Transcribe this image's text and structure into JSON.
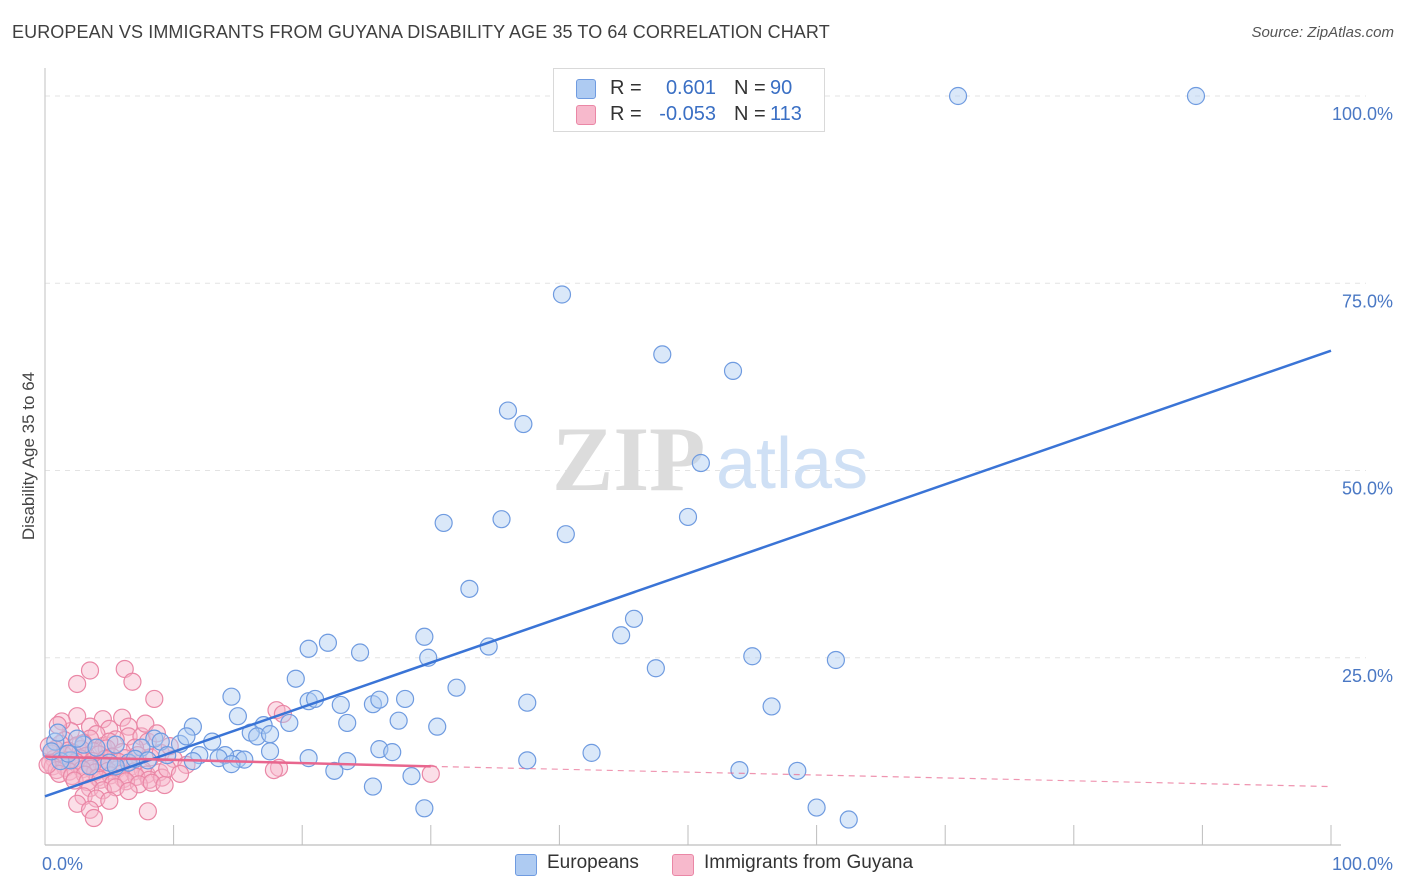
{
  "header": {
    "title": "EUROPEAN VS IMMIGRANTS FROM GUYANA DISABILITY AGE 35 TO 64 CORRELATION CHART",
    "source": "Source: ZipAtlas.com"
  },
  "watermark": {
    "zip": "ZIP",
    "atlas": "atlas"
  },
  "legend": {
    "rows": [
      {
        "r_label": "R =",
        "r_value": "0.601",
        "n_label": "N =",
        "n_value": "90",
        "color": "#aecbf2",
        "border": "#6f9be0"
      },
      {
        "r_label": "R =",
        "r_value": "-0.053",
        "n_label": "N =",
        "n_value": "113",
        "color": "#f7b9cc",
        "border": "#ea87a6"
      }
    ]
  },
  "bottom_legend": [
    {
      "label": "Europeans",
      "color": "#aecbf2",
      "border": "#6f9be0"
    },
    {
      "label": "Immigrants from Guyana",
      "color": "#f7b9cc",
      "border": "#ea87a6"
    }
  ],
  "chart_data": {
    "type": "scatter",
    "title": "EUROPEAN VS IMMIGRANTS FROM GUYANA DISABILITY AGE 35 TO 64 CORRELATION CHART",
    "xlabel": "",
    "ylabel": "Disability Age 35 to 64",
    "xlim": [
      0,
      100
    ],
    "ylim": [
      0,
      100
    ],
    "x_tick_labels": [
      {
        "value": 0,
        "label": "0.0%"
      },
      {
        "value": 100,
        "label": "100.0%"
      }
    ],
    "y_tick_labels": [
      {
        "value": 100,
        "label": "100.0%"
      },
      {
        "value": 75,
        "label": "75.0%"
      },
      {
        "value": 50,
        "label": "50.0%"
      },
      {
        "value": 25,
        "label": "25.0%"
      }
    ],
    "colors": {
      "blue": "#3a74d6",
      "pink": "#e8668e",
      "grid": "#e3e3e3"
    },
    "series": [
      {
        "name": "Europeans",
        "color": "#6f9be0",
        "fill": "#aecbf2",
        "trend": {
          "x": [
            0,
            100
          ],
          "y": [
            6.5,
            66.0
          ],
          "style": "solid"
        },
        "points": [
          [
            71,
            100
          ],
          [
            89.5,
            100
          ],
          [
            40.2,
            73.5
          ],
          [
            48,
            65.5
          ],
          [
            53.5,
            63.3
          ],
          [
            36,
            58
          ],
          [
            37.2,
            56.2
          ],
          [
            51,
            51
          ],
          [
            31,
            43
          ],
          [
            35.5,
            43.5
          ],
          [
            40.5,
            41.5
          ],
          [
            50,
            43.8
          ],
          [
            33,
            34.2
          ],
          [
            45.8,
            30.2
          ],
          [
            44.8,
            28
          ],
          [
            29.5,
            27.8
          ],
          [
            22,
            27
          ],
          [
            20.5,
            26.2
          ],
          [
            34.5,
            26.5
          ],
          [
            24.5,
            25.7
          ],
          [
            29.8,
            25
          ],
          [
            47.5,
            23.6
          ],
          [
            55,
            25.2
          ],
          [
            61.5,
            24.7
          ],
          [
            19.5,
            22.2
          ],
          [
            32,
            21
          ],
          [
            14.5,
            19.8
          ],
          [
            20.5,
            19.2
          ],
          [
            21,
            19.5
          ],
          [
            23,
            18.7
          ],
          [
            25.5,
            18.8
          ],
          [
            26,
            19.4
          ],
          [
            28,
            19.5
          ],
          [
            37.5,
            19
          ],
          [
            56.5,
            18.5
          ],
          [
            15,
            17.2
          ],
          [
            17,
            16
          ],
          [
            19,
            16.3
          ],
          [
            23.5,
            16.3
          ],
          [
            27.5,
            16.6
          ],
          [
            30.5,
            15.8
          ],
          [
            11.5,
            15.8
          ],
          [
            16,
            15
          ],
          [
            16.5,
            14.5
          ],
          [
            17.5,
            14.8
          ],
          [
            8.5,
            14.2
          ],
          [
            9,
            13.8
          ],
          [
            10.5,
            13.5
          ],
          [
            11,
            14.5
          ],
          [
            13,
            13.8
          ],
          [
            3,
            13.4
          ],
          [
            4,
            13
          ],
          [
            5.5,
            13.4
          ],
          [
            7.5,
            13
          ],
          [
            17.5,
            12.5
          ],
          [
            26,
            12.8
          ],
          [
            27,
            12.4
          ],
          [
            12,
            12
          ],
          [
            15,
            11.5
          ],
          [
            14,
            12
          ],
          [
            6.5,
            11
          ],
          [
            7,
            11.5
          ],
          [
            8,
            11.3
          ],
          [
            9.5,
            12
          ],
          [
            11.5,
            11.2
          ],
          [
            13.5,
            11.6
          ],
          [
            15.5,
            11.4
          ],
          [
            20.5,
            11.6
          ],
          [
            23.5,
            11.2
          ],
          [
            37.5,
            11.3
          ],
          [
            42.5,
            12.3
          ],
          [
            2,
            11.3
          ],
          [
            3.5,
            10.5
          ],
          [
            5,
            11
          ],
          [
            5.5,
            10.5
          ],
          [
            14.5,
            10.8
          ],
          [
            1.2,
            11.2
          ],
          [
            1.8,
            12.2
          ],
          [
            0.8,
            13.8
          ],
          [
            1,
            15
          ],
          [
            2.5,
            14.2
          ],
          [
            22.5,
            9.9
          ],
          [
            28.5,
            9.2
          ],
          [
            54,
            10
          ],
          [
            58.5,
            9.9
          ],
          [
            25.5,
            7.8
          ],
          [
            29.5,
            4.9
          ],
          [
            60,
            5
          ],
          [
            62.5,
            3.4
          ],
          [
            0.5,
            12.5
          ]
        ]
      },
      {
        "name": "Immigrants from Guyana",
        "color": "#ea87a6",
        "fill": "#f7b9cc",
        "trend": {
          "x": [
            0,
            30
          ],
          "y": [
            11.8,
            10.5
          ],
          "style": "solid",
          "dashed_extension": {
            "x": [
              30,
              100
            ],
            "y": [
              10.5,
              7.8
            ]
          }
        },
        "points": [
          [
            3.5,
            23.3
          ],
          [
            6.2,
            23.5
          ],
          [
            2.5,
            21.5
          ],
          [
            8.5,
            19.5
          ],
          [
            6,
            17
          ],
          [
            4.5,
            16.8
          ],
          [
            2.5,
            17.2
          ],
          [
            3.5,
            15.8
          ],
          [
            5,
            15.5
          ],
          [
            6.5,
            15.8
          ],
          [
            2,
            15.2
          ],
          [
            4,
            14.8
          ],
          [
            6.5,
            14.5
          ],
          [
            1.5,
            14
          ],
          [
            3.5,
            14.2
          ],
          [
            5.5,
            14.1
          ],
          [
            7.5,
            14.5
          ],
          [
            8,
            13.8
          ],
          [
            1.2,
            13.5
          ],
          [
            2.5,
            13.3
          ],
          [
            3,
            13.6
          ],
          [
            4.5,
            13.2
          ],
          [
            5,
            13.8
          ],
          [
            7,
            13
          ],
          [
            0.8,
            12.8
          ],
          [
            1.8,
            12.6
          ],
          [
            2.8,
            12.8
          ],
          [
            3.8,
            12.5
          ],
          [
            4.8,
            12.9
          ],
          [
            6,
            12.4
          ],
          [
            0.5,
            12.2
          ],
          [
            1.5,
            12
          ],
          [
            2.2,
            12.3
          ],
          [
            3.2,
            11.9
          ],
          [
            4.2,
            12.1
          ],
          [
            5.2,
            11.8
          ],
          [
            6.2,
            11.6
          ],
          [
            7.2,
            12
          ],
          [
            8.2,
            11.7
          ],
          [
            0.7,
            11.5
          ],
          [
            1.7,
            11.3
          ],
          [
            2.7,
            11.6
          ],
          [
            3.7,
            11.2
          ],
          [
            4.7,
            11.5
          ],
          [
            5.7,
            11.1
          ],
          [
            0.4,
            11
          ],
          [
            1.4,
            10.8
          ],
          [
            2.4,
            11.1
          ],
          [
            3.4,
            10.7
          ],
          [
            4.4,
            10.9
          ],
          [
            0.6,
            10.5
          ],
          [
            1.6,
            10.3
          ],
          [
            2.6,
            10.6
          ],
          [
            3.6,
            10.2
          ],
          [
            4.6,
            10.5
          ],
          [
            5.6,
            10.1
          ],
          [
            6.6,
            10.4
          ],
          [
            7.6,
            10
          ],
          [
            0.9,
            10
          ],
          [
            1.9,
            9.8
          ],
          [
            2.9,
            10.1
          ],
          [
            3.9,
            9.7
          ],
          [
            4.9,
            9.9
          ],
          [
            5.9,
            9.5
          ],
          [
            6.9,
            9.8
          ],
          [
            7.9,
            9.4
          ],
          [
            8.9,
            9.7
          ],
          [
            1.1,
            9.5
          ],
          [
            2.1,
            9.2
          ],
          [
            3.1,
            9.4
          ],
          [
            4.1,
            9
          ],
          [
            5.1,
            9.3
          ],
          [
            6.1,
            8.8
          ],
          [
            7.1,
            9.1
          ],
          [
            8.1,
            8.7
          ],
          [
            9.1,
            9
          ],
          [
            2.3,
            8.6
          ],
          [
            3.3,
            8.4
          ],
          [
            4.3,
            8.7
          ],
          [
            5.3,
            8.2
          ],
          [
            6.3,
            8.5
          ],
          [
            7.3,
            8.1
          ],
          [
            8.3,
            8.3
          ],
          [
            9.3,
            8
          ],
          [
            3.5,
            7.6
          ],
          [
            4.5,
            7.3
          ],
          [
            5.5,
            7.7
          ],
          [
            6.5,
            7.2
          ],
          [
            3,
            6.5
          ],
          [
            4,
            6.2
          ],
          [
            2.5,
            5.5
          ],
          [
            5,
            5.9
          ],
          [
            3.5,
            4.7
          ],
          [
            8,
            4.5
          ],
          [
            3.8,
            3.6
          ],
          [
            18,
            18
          ],
          [
            18.5,
            17.5
          ],
          [
            1.3,
            16.5
          ],
          [
            9,
            12.3
          ],
          [
            10,
            11.5
          ],
          [
            11,
            10.7
          ],
          [
            9.5,
            10.2
          ],
          [
            10.5,
            9.5
          ],
          [
            9.7,
            13.2
          ],
          [
            18.2,
            10.3
          ],
          [
            17.8,
            10
          ],
          [
            30,
            9.5
          ],
          [
            6.8,
            21.8
          ],
          [
            7.8,
            16.2
          ],
          [
            8.7,
            14.9
          ],
          [
            0.3,
            13.2
          ],
          [
            0.2,
            10.7
          ],
          [
            1,
            16
          ]
        ]
      }
    ]
  }
}
